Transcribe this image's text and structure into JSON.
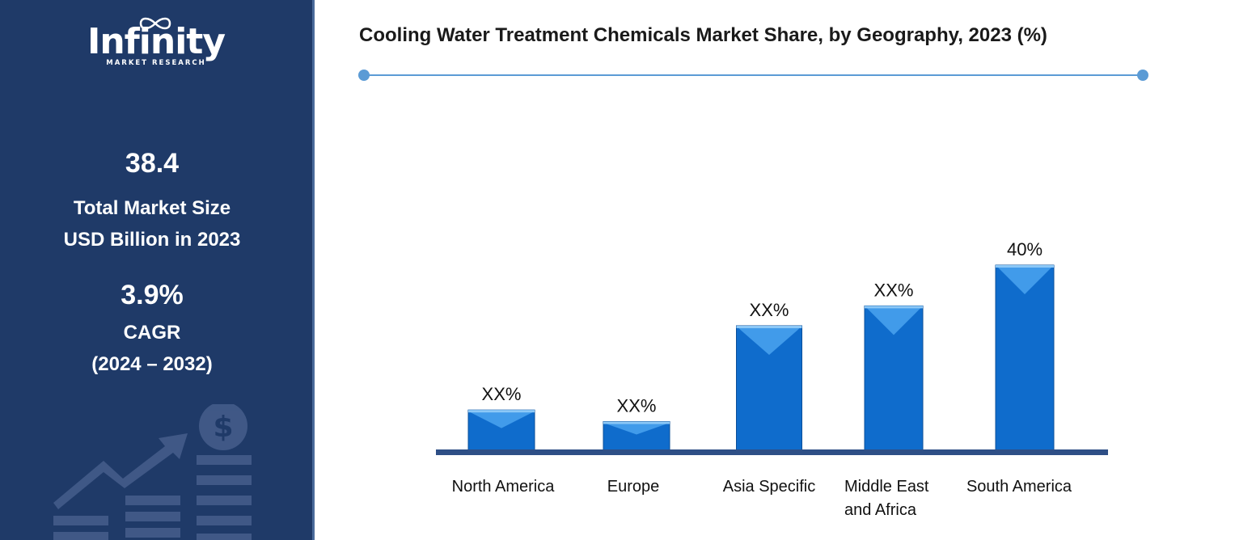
{
  "sidebar": {
    "logo": {
      "name": "Infinity",
      "tagline": "MARKET RESEARCH"
    },
    "market_size": {
      "value": "38.4",
      "label_line1": "Total Market Size",
      "label_line2": "USD Billion in 2023"
    },
    "cagr": {
      "value": "3.9%",
      "label_line1": "CAGR",
      "label_line2": "(2024 – 2032)"
    },
    "decor_icon": "dollar-growth-chart-icon"
  },
  "colors": {
    "sidebar": "#1f3a68",
    "accent": "#5b9bd5",
    "bar": "#0f6ccc",
    "bar_top": "#4aa3ee",
    "axis": "#2e4f86"
  },
  "chart_data": {
    "type": "bar",
    "title": "Cooling Water Treatment Chemicals Market Share, by Geography, 2023 (%)",
    "categories": [
      "North America",
      "Europe",
      "Asia Specific",
      "Middle East and Africa",
      "South America"
    ],
    "category_lines": [
      [
        "North America"
      ],
      [
        "Europe"
      ],
      [
        "Asia Specific"
      ],
      [
        "Middle East",
        "and Africa"
      ],
      [
        "South America"
      ]
    ],
    "values": [
      8.7,
      6.2,
      26.9,
      31.2,
      40
    ],
    "data_labels": [
      "XX%",
      "XX%",
      "XX%",
      "XX%",
      "40%"
    ],
    "ylim": [
      0,
      40
    ],
    "xlabel": "",
    "ylabel": "",
    "grid": false,
    "legend": "none"
  }
}
